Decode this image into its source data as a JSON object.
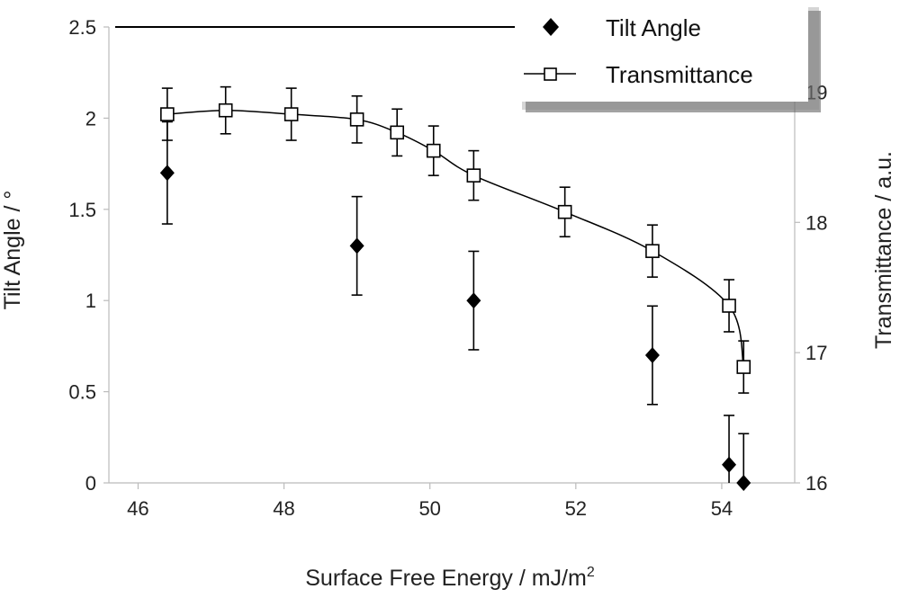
{
  "chart_data": {
    "type": "scatter",
    "title": "",
    "xlabel": "Surface Free Energy / mJ/m",
    "xlabel_superscript": "2",
    "ylabel_left": "Tilt Angle / °",
    "ylabel_right": "Transmittance / a.u.",
    "xlim": [
      45.6,
      55.0
    ],
    "xticks": [
      "46",
      "48",
      "50",
      "52",
      "54"
    ],
    "ylim_left": [
      0,
      2.5
    ],
    "yticks_left": [
      "0",
      "0.5",
      "1",
      "1.5",
      "2",
      "2.5"
    ],
    "ylim_right": [
      16,
      19.5
    ],
    "yticks_right": [
      "16",
      "17",
      "18",
      "19"
    ],
    "legend_position": "top-right",
    "series": [
      {
        "name": "Tilt Angle",
        "axis": "left",
        "marker": "diamond",
        "color": "#000000",
        "x": [
          46.4,
          49.0,
          50.6,
          53.05,
          54.1,
          54.3
        ],
        "y": [
          1.7,
          1.3,
          1.0,
          0.7,
          0.1,
          0.0
        ],
        "error": [
          0.28,
          0.27,
          0.27,
          0.27,
          0.27,
          0.27
        ]
      },
      {
        "name": "Transmittance",
        "axis": "right",
        "marker": "open-square",
        "color": "#000000",
        "line": "smooth",
        "x": [
          46.4,
          47.2,
          48.1,
          49.0,
          49.55,
          50.05,
          50.6,
          51.85,
          53.05,
          54.1,
          54.3
        ],
        "y": [
          18.83,
          18.86,
          18.83,
          18.79,
          18.69,
          18.55,
          18.36,
          18.08,
          17.78,
          17.36,
          16.89
        ],
        "error": [
          0.2,
          0.18,
          0.2,
          0.18,
          0.18,
          0.19,
          0.19,
          0.19,
          0.2,
          0.2,
          0.2
        ]
      }
    ]
  }
}
